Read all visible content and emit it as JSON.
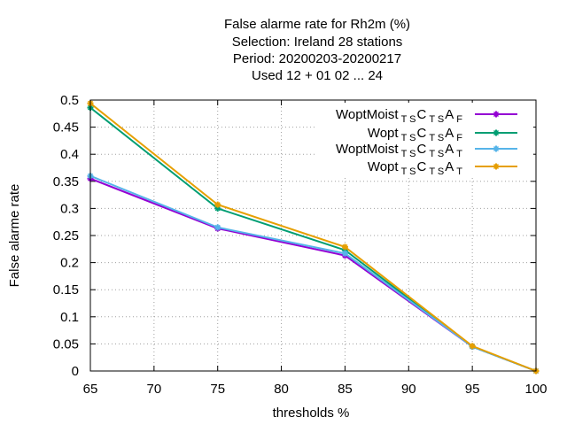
{
  "chart_data": {
    "type": "line",
    "title": [
      "False alarme rate  for Rh2m (%)",
      "Selection: Ireland      28 stations",
      "Period: 20200203-20200217",
      "Used  12 + 01 02 ... 24"
    ],
    "xlabel": "thresholds %",
    "ylabel": "False alarme rate",
    "xlim": [
      65,
      100
    ],
    "ylim": [
      0,
      0.5
    ],
    "xticks": [
      65,
      70,
      75,
      80,
      85,
      90,
      95,
      100
    ],
    "yticks": [
      0,
      0.05,
      0.1,
      0.15,
      0.2,
      0.25,
      0.3,
      0.35,
      0.4,
      0.45,
      0.5
    ],
    "ytick_labels": [
      "0",
      "0.05",
      "0.1",
      "0.15",
      "0.2",
      "0.25",
      "0.3",
      "0.35",
      "0.4",
      "0.45",
      "0.5"
    ],
    "grid": true,
    "legend_position": "top-right",
    "x": [
      65,
      75,
      85,
      95,
      100
    ],
    "series": [
      {
        "name": "WoptMoist",
        "sub1": "T S",
        "mid": "C",
        "sub2": "T S",
        "tail": "A",
        "sub3": "F",
        "color": "#9400d3",
        "values": [
          0.355,
          0.263,
          0.213,
          0.045,
          0.0
        ]
      },
      {
        "name": "Wopt",
        "sub1": "T S",
        "mid": "C",
        "sub2": "T S",
        "tail": "A",
        "sub3": "F",
        "color": "#009e73",
        "values": [
          0.486,
          0.3,
          0.223,
          0.045,
          0.0
        ]
      },
      {
        "name": "WoptMoist",
        "sub1": "T S",
        "mid": "C",
        "sub2": "T S",
        "tail": "A",
        "sub3": "T",
        "color": "#56b4e9",
        "values": [
          0.36,
          0.265,
          0.217,
          0.045,
          0.0
        ]
      },
      {
        "name": "Wopt",
        "sub1": "T S",
        "mid": "C",
        "sub2": "T S",
        "tail": "A",
        "sub3": "T",
        "color": "#e69f00",
        "values": [
          0.494,
          0.307,
          0.229,
          0.046,
          0.0
        ]
      }
    ]
  }
}
